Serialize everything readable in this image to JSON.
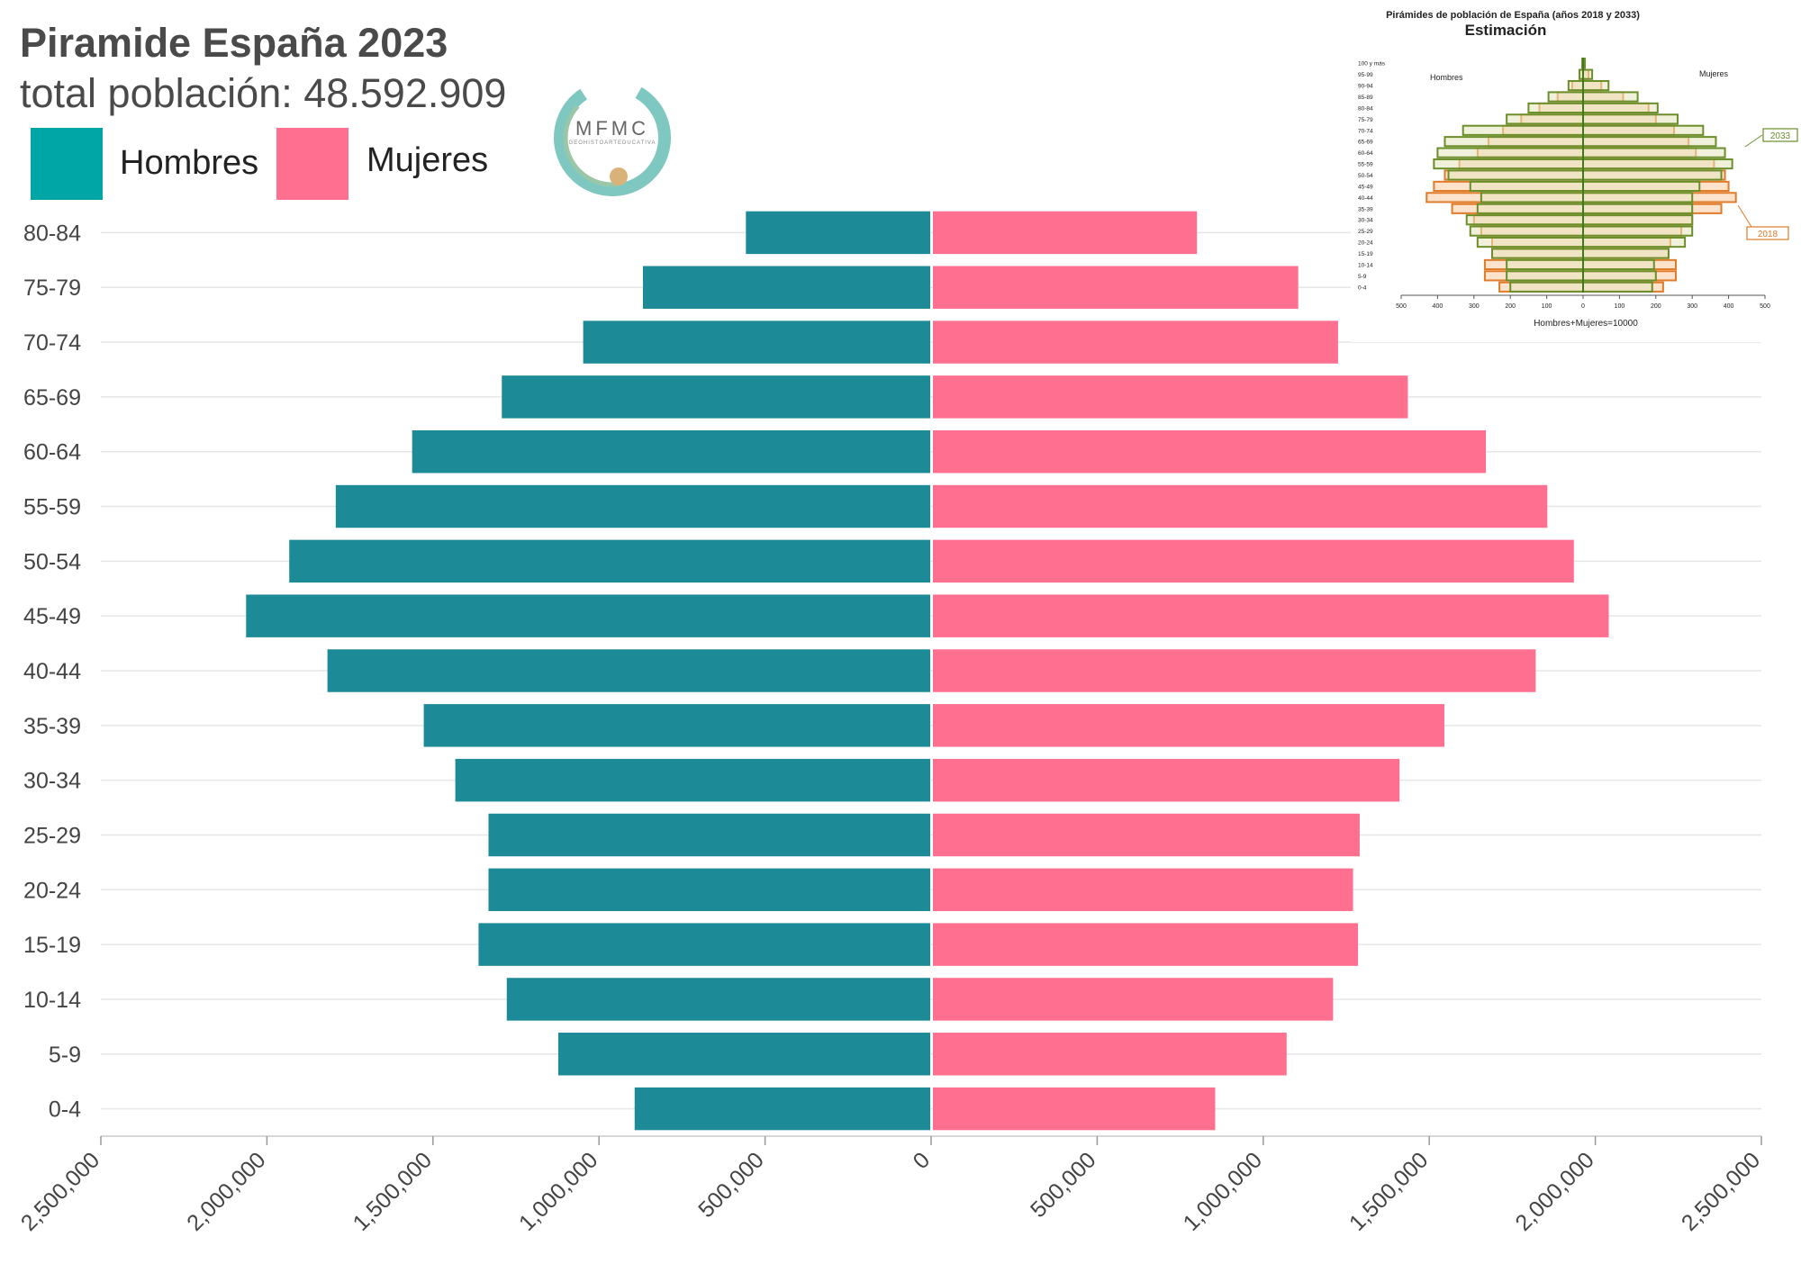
{
  "header": {
    "title": "Piramide España 2023",
    "subtitle": "total población: 48.592.909"
  },
  "legend": {
    "items": [
      {
        "label": "Hombres",
        "color": "#00a6a6"
      },
      {
        "label": "Mujeres",
        "color": "#ff6f8f"
      }
    ]
  },
  "logo": {
    "text": "MFMC",
    "subtext": "GEOHISTOARTEDUCATIVA"
  },
  "chart_data": [
    {
      "type": "bar",
      "orientation": "horizontal-population-pyramid",
      "categories": [
        "0-4",
        "5-9",
        "10-14",
        "15-19",
        "20-24",
        "25-29",
        "30-34",
        "35-39",
        "40-44",
        "45-49",
        "50-54",
        "55-59",
        "60-64",
        "65-69",
        "70-74",
        "75-79",
        "80-84"
      ],
      "series": [
        {
          "name": "Hombres",
          "color": "#1d8a98",
          "values": [
            890000,
            1120000,
            1275000,
            1360000,
            1330000,
            1330000,
            1430000,
            1525000,
            1815000,
            2060000,
            1930000,
            1790000,
            1560000,
            1290000,
            1045000,
            865000,
            555000
          ]
        },
        {
          "name": "Mujeres",
          "color": "#ff6f8f",
          "values": [
            850000,
            1065000,
            1205000,
            1280000,
            1265000,
            1285000,
            1405000,
            1540000,
            1815000,
            2035000,
            1930000,
            1850000,
            1665000,
            1430000,
            1220000,
            1100000,
            795000
          ]
        }
      ],
      "xticks": [
        "2,500,000",
        "2,000,000",
        "1,500,000",
        "1,000,000",
        "500,000",
        "0",
        "500,000",
        "1,000,000",
        "1,500,000",
        "2,000,000",
        "2,500,000"
      ],
      "xlim": [
        -2500000,
        2500000
      ],
      "grid": true
    },
    {
      "type": "bar",
      "orientation": "horizontal-population-pyramid",
      "title": "Pirámides de población de España (años 2018 y 2033)",
      "subtitle": "Estimación",
      "xlabel": "Hombres+Mujeres=10000",
      "left_label": "Hombres",
      "right_label": "Mujeres",
      "categories": [
        "0-4",
        "5-9",
        "10-14",
        "15-19",
        "20-24",
        "25-29",
        "30-34",
        "35-39",
        "40-44",
        "45-49",
        "50-54",
        "55-59",
        "60-64",
        "65-69",
        "70-74",
        "75-79",
        "80-84",
        "85-89",
        "90-94",
        "95-99",
        "100 y más"
      ],
      "series": [
        {
          "name": "2018",
          "color": "#e07b2a",
          "left": [
            230,
            270,
            270,
            250,
            250,
            280,
            300,
            360,
            430,
            410,
            380,
            340,
            290,
            260,
            220,
            170,
            120,
            70,
            30,
            10,
            2
          ],
          "right": [
            220,
            255,
            255,
            235,
            240,
            270,
            300,
            380,
            420,
            400,
            390,
            360,
            310,
            290,
            250,
            200,
            180,
            110,
            50,
            15,
            3
          ]
        },
        {
          "name": "2033",
          "color": "#6a8f2a",
          "left": [
            200,
            210,
            210,
            250,
            290,
            310,
            320,
            290,
            280,
            310,
            370,
            410,
            400,
            380,
            330,
            210,
            150,
            95,
            40,
            10,
            2
          ],
          "right": [
            190,
            200,
            195,
            235,
            280,
            300,
            300,
            300,
            300,
            320,
            380,
            410,
            390,
            365,
            330,
            260,
            205,
            150,
            70,
            25,
            5
          ]
        }
      ],
      "xticks": [
        "500",
        "400",
        "300",
        "200",
        "100",
        "0",
        "100",
        "200",
        "300",
        "400",
        "500"
      ],
      "xlim": [
        -500,
        500
      ],
      "annotations": [
        "2033",
        "2018"
      ]
    }
  ]
}
